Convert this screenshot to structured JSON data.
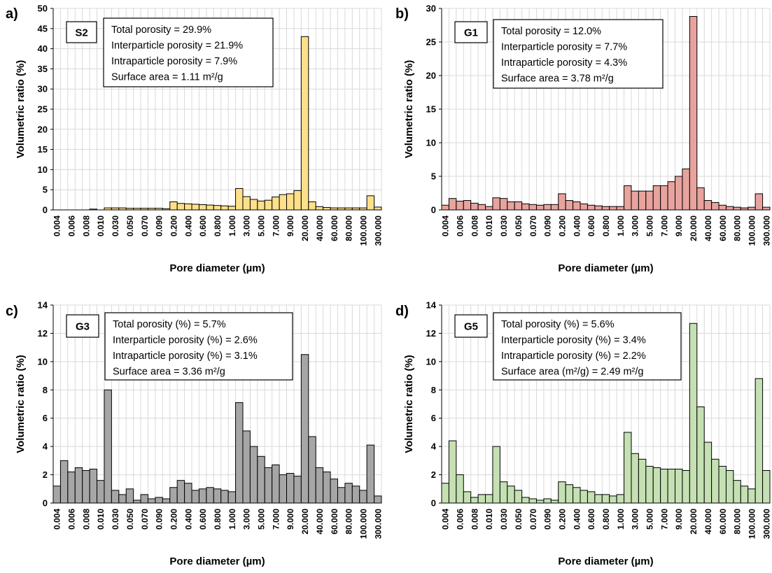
{
  "chart_data": [
    {
      "type": "bar",
      "panel_label": "a)",
      "sample_label": "S2",
      "annotations": [
        "Total porosity = 29.9%",
        "Interparticle porosity = 21.9%",
        "Intraparticle porosity = 7.9%",
        "Surface area = 1.11 m²/g"
      ],
      "xlabel": "Pore diameter (µm)",
      "ylabel": "Volumetric ratio (%)",
      "ylim": [
        0,
        50
      ],
      "yticks": [
        0,
        5,
        10,
        15,
        20,
        25,
        30,
        35,
        40,
        45,
        50
      ],
      "xtick_labels": [
        "0.004",
        "0.006",
        "0.008",
        "0.010",
        "0.030",
        "0.050",
        "0.070",
        "0.090",
        "0.200",
        "0.400",
        "0.600",
        "0.800",
        "1.000",
        "3.000",
        "5.000",
        "7.000",
        "9.000",
        "20.000",
        "40.000",
        "60.000",
        "80.000",
        "100.000",
        "300.000"
      ],
      "values": [
        0,
        0,
        0,
        0,
        0,
        0.2,
        0,
        0.5,
        0.5,
        0.5,
        0.4,
        0.4,
        0.4,
        0.4,
        0.4,
        0.3,
        2.0,
        1.6,
        1.5,
        1.4,
        1.3,
        1.2,
        1.1,
        1.0,
        0.9,
        5.3,
        3.3,
        2.6,
        2.2,
        2.4,
        3.2,
        3.8,
        4.0,
        4.8,
        43.0,
        2.0,
        0.8,
        0.6,
        0.5,
        0.5,
        0.5,
        0.5,
        0.5,
        3.5,
        0.7
      ],
      "bar_color": "#ffe08a",
      "grid": true
    },
    {
      "type": "bar",
      "panel_label": "b)",
      "sample_label": "G1",
      "annotations": [
        "Total porosity = 12.0%",
        "Interparticle porosity = 7.7%",
        "Intraparticle porosity = 4.3%",
        "Surface area = 3.78 m²/g"
      ],
      "xlabel": "Pore diameter (µm)",
      "ylabel": "Volumetric ratio (%)",
      "ylim": [
        0,
        30
      ],
      "yticks": [
        0,
        5,
        10,
        15,
        20,
        25,
        30
      ],
      "xtick_labels": [
        "0.004",
        "0.006",
        "0.008",
        "0.010",
        "0.030",
        "0.050",
        "0.070",
        "0.090",
        "0.200",
        "0.400",
        "0.600",
        "0.800",
        "1.000",
        "3.000",
        "5.000",
        "7.000",
        "9.000",
        "20.000",
        "40.000",
        "60.000",
        "80.000",
        "100.000",
        "300.000"
      ],
      "values": [
        0.7,
        1.7,
        1.3,
        1.4,
        1.0,
        0.8,
        0.5,
        1.8,
        1.7,
        1.2,
        1.2,
        0.9,
        0.8,
        0.7,
        0.8,
        0.8,
        2.4,
        1.4,
        1.2,
        0.9,
        0.7,
        0.6,
        0.5,
        0.5,
        0.5,
        3.6,
        2.8,
        2.8,
        2.8,
        3.6,
        3.6,
        4.2,
        5.0,
        6.1,
        28.8,
        3.3,
        1.4,
        1.1,
        0.7,
        0.5,
        0.4,
        0.3,
        0.4,
        2.4,
        0.4
      ],
      "bar_color": "#e8a39e",
      "grid": true
    },
    {
      "type": "bar",
      "panel_label": "c)",
      "sample_label": "G3",
      "annotations": [
        "Total porosity (%) = 5.7%",
        "Interparticle porosity (%) = 2.6%",
        "Intraparticle porosity (%) = 3.1%",
        "Surface area = 3.36 m²/g"
      ],
      "xlabel": "Pore diameter (µm)",
      "ylabel": "Volumetric ratio (%)",
      "ylim": [
        0,
        14
      ],
      "yticks": [
        0,
        2,
        4,
        6,
        8,
        10,
        12,
        14
      ],
      "xtick_labels": [
        "0.004",
        "0.006",
        "0.008",
        "0.010",
        "0.030",
        "0.050",
        "0.070",
        "0.090",
        "0.200",
        "0.400",
        "0.600",
        "0.800",
        "1.000",
        "3.000",
        "5.000",
        "7.000",
        "9.000",
        "20.000",
        "40.000",
        "60.000",
        "80.000",
        "100.000",
        "300.000"
      ],
      "values": [
        1.2,
        3.0,
        2.2,
        2.5,
        2.3,
        2.4,
        1.6,
        8.0,
        0.9,
        0.6,
        1.0,
        0.2,
        0.6,
        0.3,
        0.4,
        0.3,
        1.1,
        1.6,
        1.4,
        0.9,
        1.0,
        1.1,
        1.0,
        0.9,
        0.8,
        7.1,
        5.1,
        4.0,
        3.3,
        2.5,
        2.7,
        2.0,
        2.1,
        1.9,
        10.5,
        4.7,
        2.5,
        2.2,
        1.7,
        1.1,
        1.4,
        1.2,
        0.9,
        4.1,
        0.5
      ],
      "bar_color": "#a6a6a6",
      "grid": true
    },
    {
      "type": "bar",
      "panel_label": "d)",
      "sample_label": "G5",
      "annotations": [
        "Total porosity (%) = 5.6%",
        "Interparticle porosity (%) = 3.4%",
        "Intraparticle porosity (%) = 2.2%",
        "Surface area (m²/g) = 2.49 m²/g"
      ],
      "xlabel": "Pore diameter (µm)",
      "ylabel": "Volumetric ratio (%)",
      "ylim": [
        0,
        14
      ],
      "yticks": [
        0,
        2,
        4,
        6,
        8,
        10,
        12,
        14
      ],
      "xtick_labels": [
        "0.004",
        "0.006",
        "0.008",
        "0.010",
        "0.030",
        "0.050",
        "0.070",
        "0.090",
        "0.200",
        "0.400",
        "0.600",
        "0.800",
        "1.000",
        "3.000",
        "5.000",
        "7.000",
        "9.000",
        "20.000",
        "40.000",
        "60.000",
        "80.000",
        "100.000",
        "300.000"
      ],
      "values": [
        1.4,
        4.4,
        2.0,
        0.8,
        0.4,
        0.6,
        0.6,
        4.0,
        1.5,
        1.2,
        0.9,
        0.4,
        0.3,
        0.2,
        0.3,
        0.2,
        1.5,
        1.3,
        1.1,
        0.9,
        0.8,
        0.6,
        0.6,
        0.5,
        0.6,
        5.0,
        3.5,
        3.1,
        2.6,
        2.5,
        2.4,
        2.4,
        2.4,
        2.3,
        12.7,
        6.8,
        4.3,
        3.1,
        2.6,
        2.3,
        1.6,
        1.2,
        1.0,
        8.8,
        2.3
      ],
      "bar_color": "#c5e0b3",
      "grid": true
    }
  ]
}
